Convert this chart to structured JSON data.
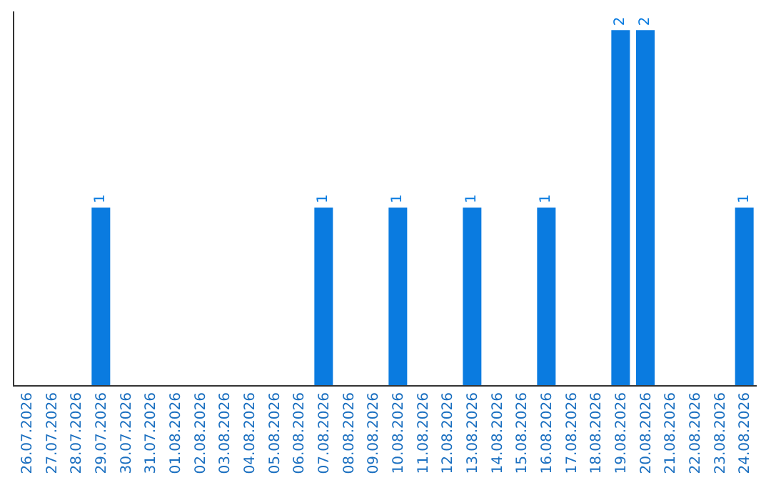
{
  "chart_data": {
    "type": "bar",
    "categories": [
      "26.07.2026",
      "27.07.2026",
      "28.07.2026",
      "29.07.2026",
      "30.07.2026",
      "31.07.2026",
      "01.08.2026",
      "02.08.2026",
      "03.08.2026",
      "04.08.2026",
      "05.08.2026",
      "06.08.2026",
      "07.08.2026",
      "08.08.2026",
      "09.08.2026",
      "10.08.2026",
      "11.08.2026",
      "12.08.2026",
      "13.08.2026",
      "14.08.2026",
      "15.08.2026",
      "16.08.2026",
      "17.08.2026",
      "18.08.2026",
      "19.08.2026",
      "20.08.2026",
      "21.08.2026",
      "22.08.2026",
      "23.08.2026",
      "24.08.2026"
    ],
    "values": [
      null,
      null,
      null,
      1,
      null,
      null,
      null,
      null,
      null,
      null,
      null,
      null,
      1,
      null,
      null,
      1,
      null,
      null,
      1,
      null,
      null,
      1,
      null,
      null,
      2,
      2,
      null,
      null,
      null,
      1
    ],
    "value_labels": [
      null,
      null,
      null,
      "1",
      null,
      null,
      null,
      null,
      null,
      null,
      null,
      null,
      "1",
      null,
      null,
      "1",
      null,
      null,
      "1",
      null,
      null,
      "1",
      null,
      null,
      "2",
      "2",
      null,
      null,
      null,
      "1"
    ],
    "color": "#0a7be0",
    "tick_labels": "x",
    "legend": false
  }
}
